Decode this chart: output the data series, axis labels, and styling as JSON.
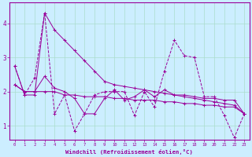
{
  "xlabel": "Windchill (Refroidissement éolien,°C)",
  "background_color": "#cceeff",
  "grid_color": "#aaddcc",
  "line_color": "#990099",
  "xlim": [
    -0.5,
    23.5
  ],
  "ylim": [
    0.6,
    4.6
  ],
  "yticks": [
    1,
    2,
    3,
    4
  ],
  "xticks": [
    0,
    1,
    2,
    3,
    4,
    5,
    6,
    7,
    8,
    9,
    10,
    11,
    12,
    13,
    14,
    15,
    16,
    17,
    18,
    19,
    20,
    21,
    22,
    23
  ],
  "series": [
    [
      2.75,
      1.9,
      1.9,
      4.3,
      3.8,
      3.5,
      3.2,
      2.9,
      2.6,
      2.3,
      2.2,
      2.15,
      2.1,
      2.05,
      2.0,
      1.95,
      1.9,
      1.85,
      1.8,
      1.75,
      1.7,
      1.65,
      1.6,
      1.35
    ],
    [
      2.75,
      1.9,
      2.4,
      4.3,
      1.35,
      1.9,
      0.85,
      1.35,
      1.9,
      2.0,
      2.0,
      2.0,
      1.3,
      2.0,
      1.55,
      2.6,
      3.5,
      3.05,
      3.0,
      1.85,
      1.85,
      1.3,
      0.65,
      1.35
    ],
    [
      2.2,
      2.0,
      2.0,
      2.45,
      2.1,
      2.0,
      1.8,
      1.35,
      1.35,
      1.8,
      2.05,
      1.75,
      1.85,
      2.05,
      1.85,
      2.05,
      1.9,
      1.9,
      1.85,
      1.8,
      1.8,
      1.75,
      1.75,
      1.35
    ],
    [
      2.2,
      2.0,
      2.0,
      2.0,
      2.0,
      1.9,
      1.9,
      1.85,
      1.85,
      1.85,
      1.8,
      1.8,
      1.75,
      1.75,
      1.75,
      1.7,
      1.7,
      1.65,
      1.65,
      1.6,
      1.6,
      1.55,
      1.55,
      1.35
    ]
  ],
  "line_styles": [
    "-",
    "--",
    "-",
    "-"
  ],
  "tick_fontsize": 4.0,
  "xlabel_fontsize": 5.2,
  "ytick_fontsize": 5.5
}
